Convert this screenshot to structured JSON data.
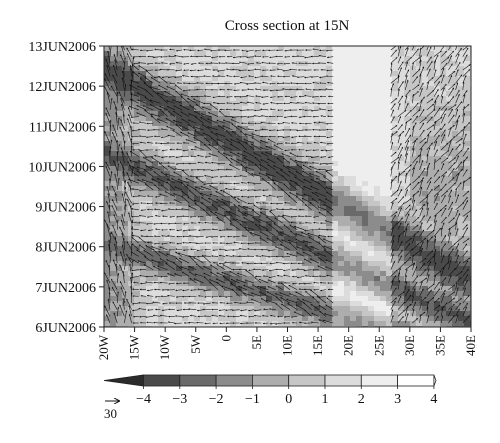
{
  "chart_data": {
    "type": "heatmap",
    "title": "Cross section at 15N",
    "xlabel": "",
    "ylabel": "",
    "x_ticks": [
      "20W",
      "15W",
      "10W",
      "5W",
      "0",
      "5E",
      "10E",
      "15E",
      "20E",
      "25E",
      "30E",
      "35E",
      "40E"
    ],
    "x_values": [
      -20,
      -15,
      -10,
      -5,
      0,
      5,
      10,
      15,
      20,
      25,
      30,
      35,
      40
    ],
    "xlim": [
      -20,
      40
    ],
    "y_ticks": [
      "6JUN2006",
      "7JUN2006",
      "8JUN2006",
      "9JUN2006",
      "10JUN2006",
      "11JUN2006",
      "12JUN2006",
      "13JUN2006"
    ],
    "ylim": [
      "6JUN2006",
      "13JUN2006"
    ],
    "colorbar": {
      "ticks": [
        -4,
        -3,
        -2,
        -1,
        0,
        1,
        2,
        3,
        4
      ],
      "tick_labels": [
        "−4",
        "−3",
        "−2",
        "−1",
        "0",
        "1",
        "2",
        "3",
        "4"
      ],
      "colors": [
        "#2b2b2b",
        "#4a4a4a",
        "#6a6a6a",
        "#8c8c8c",
        "#adadad",
        "#c6c6c6",
        "#dcdcdc",
        "#eeeeee",
        "#ffffff",
        "#ffffff"
      ]
    },
    "reference_vector": {
      "label": "30"
    },
    "grid": false
  }
}
